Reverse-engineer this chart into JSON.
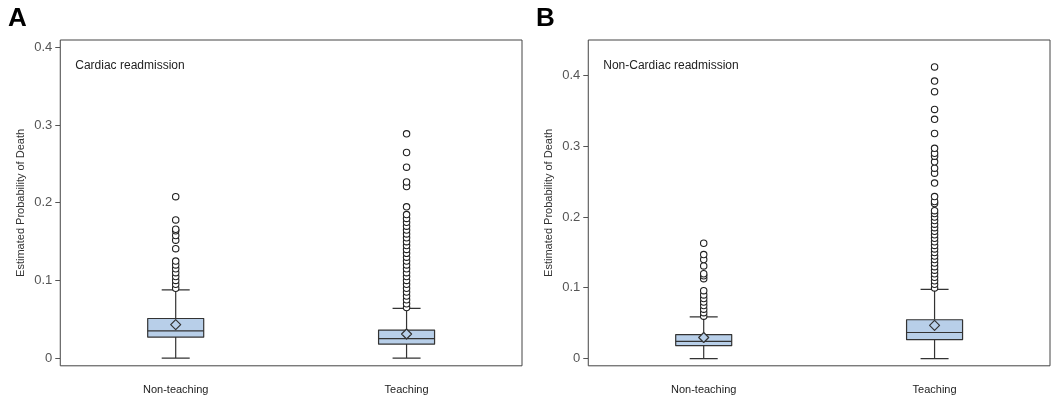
{
  "chart_data": [
    {
      "type": "box",
      "title": "Cardiac readmission",
      "ylabel": "Estimated Probability of Death",
      "annotations": [
        "A"
      ],
      "categories": [
        "Non-teaching",
        "Teaching"
      ],
      "color": "#b8cfe9",
      "ylim": [
        -0.01,
        0.41
      ],
      "yticks": [
        0,
        0.1,
        0.2,
        0.3,
        0.4
      ],
      "boxes": [
        {
          "low": 0,
          "q1": 0.027,
          "median": 0.035,
          "q3": 0.051,
          "high": 0.088,
          "mean": 0.043,
          "outliers": [
            0.09,
            0.095,
            0.1,
            0.105,
            0.11,
            0.115,
            0.12,
            0.125,
            0.141,
            0.152,
            0.158,
            0.164,
            0.166,
            0.178,
            0.208
          ]
        },
        {
          "low": 0,
          "q1": 0.018,
          "median": 0.025,
          "q3": 0.036,
          "high": 0.064,
          "mean": 0.031,
          "outliers": [
            0.065,
            0.07,
            0.075,
            0.08,
            0.085,
            0.09,
            0.095,
            0.1,
            0.105,
            0.11,
            0.115,
            0.12,
            0.125,
            0.13,
            0.135,
            0.14,
            0.145,
            0.15,
            0.155,
            0.16,
            0.165,
            0.17,
            0.175,
            0.18,
            0.185,
            0.195,
            0.221,
            0.227,
            0.246,
            0.265,
            0.289
          ]
        }
      ]
    },
    {
      "type": "box",
      "title": "Non-Cardiac readmission",
      "ylabel": "Estimated Probability of Death",
      "annotations": [
        "B"
      ],
      "categories": [
        "Non-teaching",
        "Teaching"
      ],
      "color": "#b8cfe9",
      "ylim": [
        -0.01,
        0.45
      ],
      "yticks": [
        0,
        0.1,
        0.2,
        0.3,
        0.4
      ],
      "boxes": [
        {
          "low": 0,
          "q1": 0.0185,
          "median": 0.0245,
          "q3": 0.034,
          "high": 0.059,
          "mean": 0.03,
          "outliers": [
            0.06,
            0.065,
            0.07,
            0.075,
            0.08,
            0.085,
            0.09,
            0.096,
            0.113,
            0.117,
            0.12,
            0.131,
            0.14,
            0.147,
            0.163
          ]
        },
        {
          "low": 0,
          "q1": 0.027,
          "median": 0.037,
          "q3": 0.055,
          "high": 0.098,
          "mean": 0.047,
          "outliers": [
            0.1,
            0.105,
            0.11,
            0.115,
            0.12,
            0.125,
            0.13,
            0.135,
            0.14,
            0.145,
            0.15,
            0.155,
            0.16,
            0.165,
            0.17,
            0.175,
            0.18,
            0.185,
            0.19,
            0.195,
            0.2,
            0.205,
            0.209,
            0.219,
            0.222,
            0.229,
            0.248,
            0.262,
            0.269,
            0.278,
            0.286,
            0.29,
            0.297,
            0.318,
            0.338,
            0.352,
            0.377,
            0.392,
            0.412
          ]
        }
      ]
    }
  ]
}
